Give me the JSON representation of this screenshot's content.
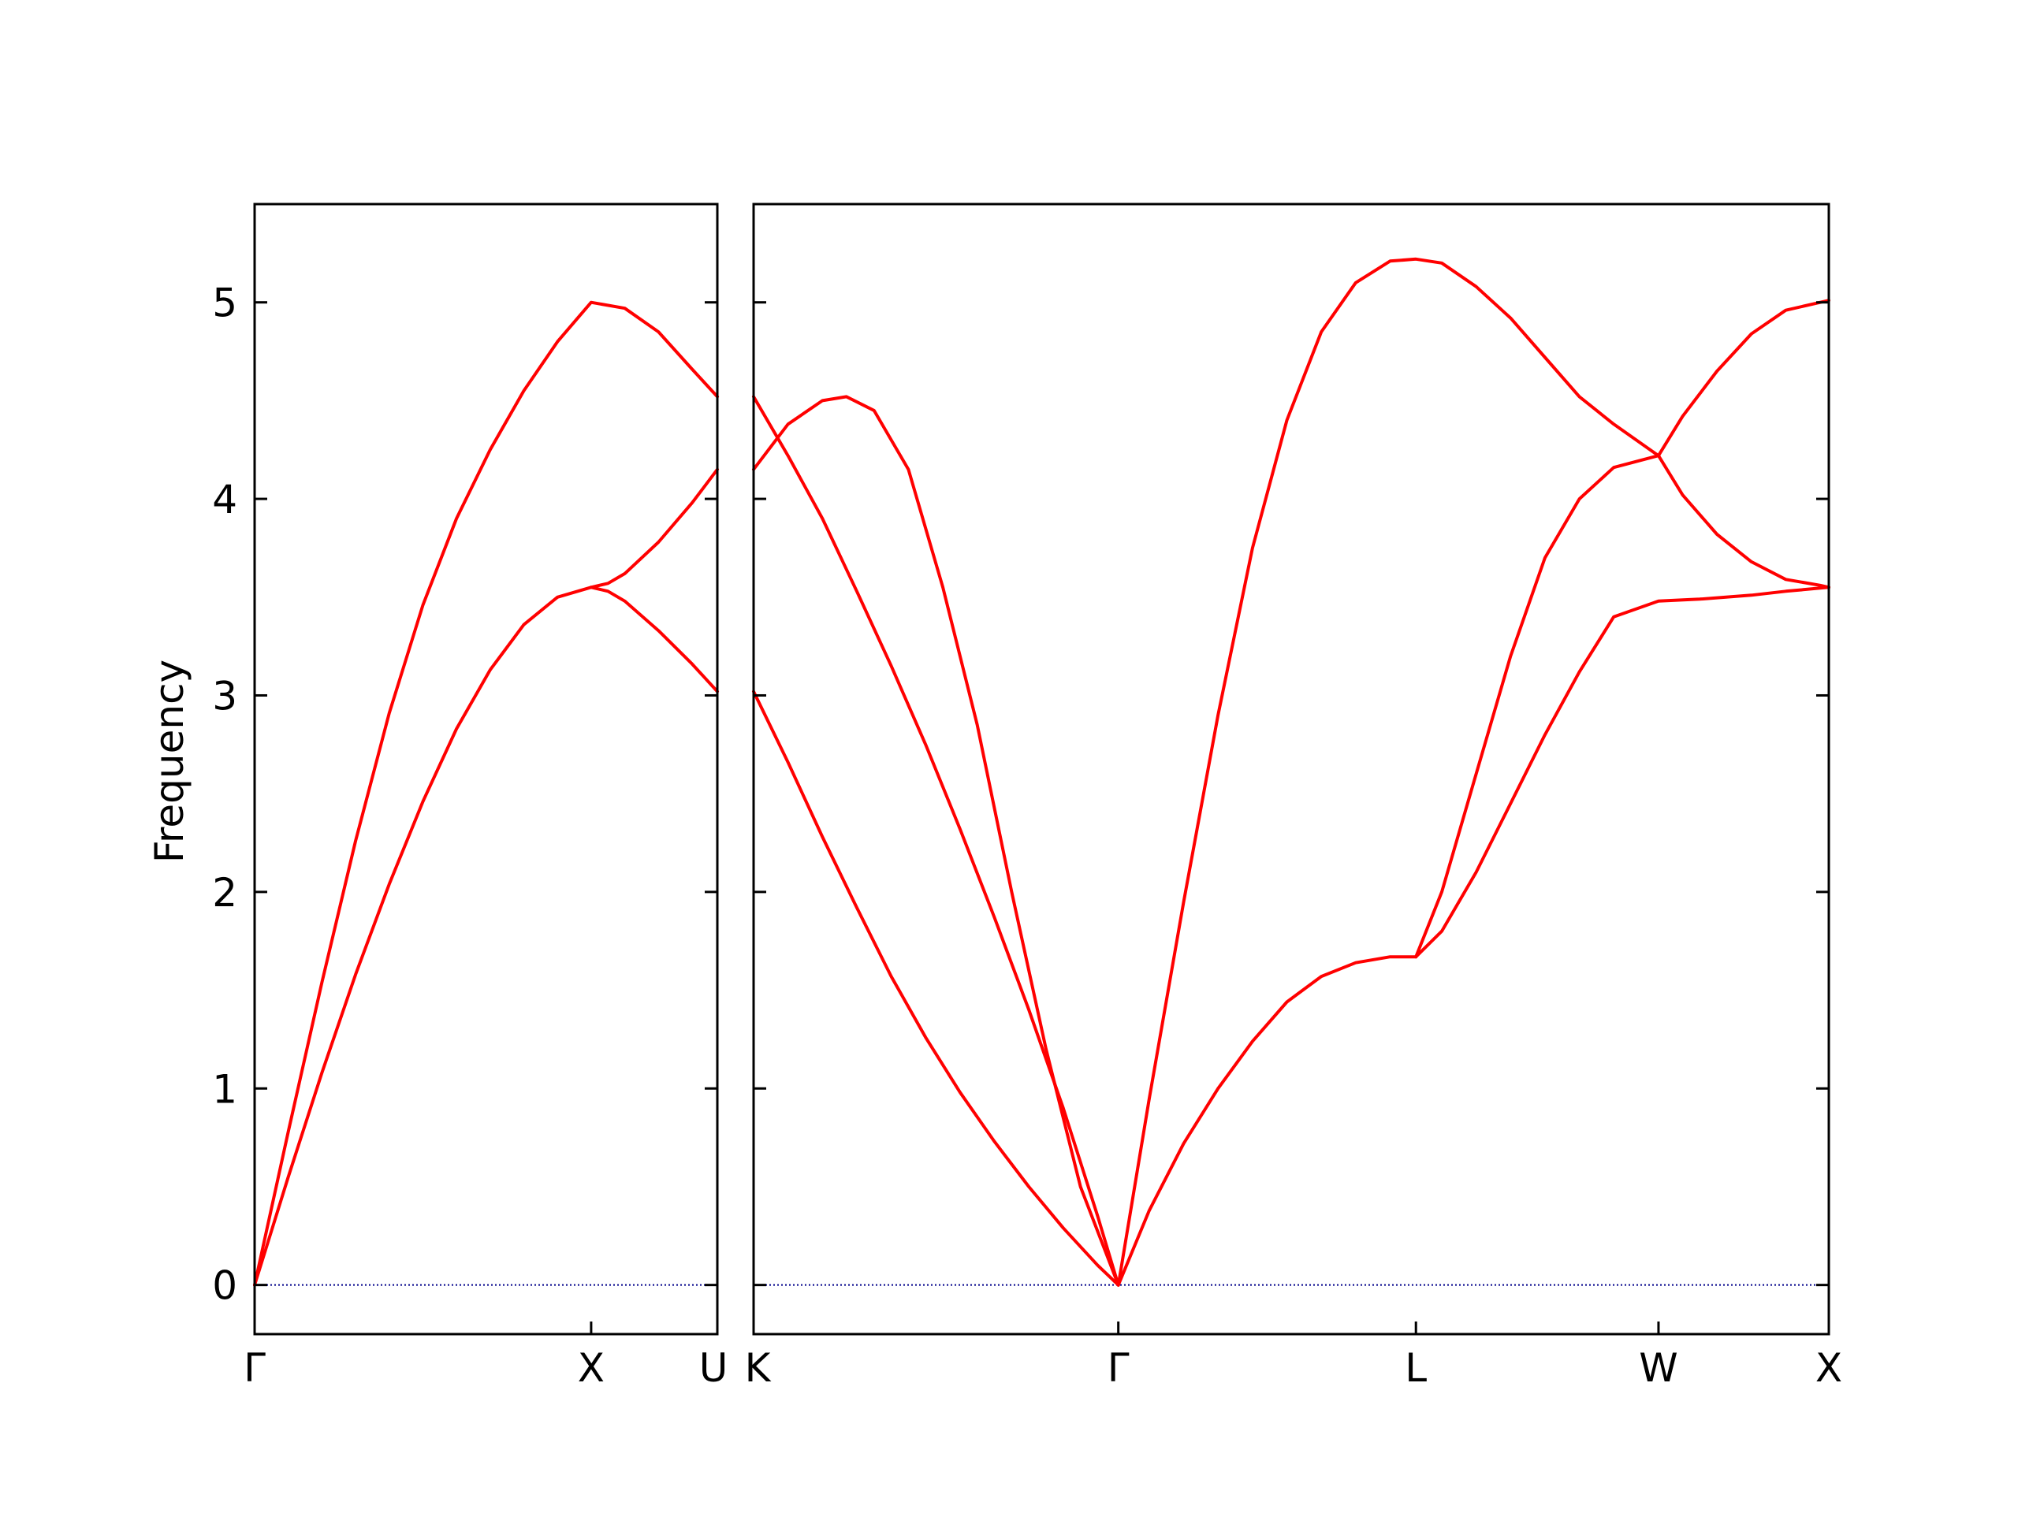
{
  "chart_data": {
    "type": "line",
    "ylabel": "Frequency",
    "ylim": [
      -0.25,
      5.5
    ],
    "yticks": [
      0,
      1,
      2,
      3,
      4,
      5
    ],
    "grid": false,
    "colors": {
      "bands": "#ff0000",
      "zero_line": "#00008b",
      "axis": "#000000"
    },
    "panels": [
      {
        "xlim": [
          0,
          1.375
        ],
        "points": [
          {
            "x": 0,
            "label": "Γ"
          },
          {
            "x": 1.0,
            "label": "X"
          },
          {
            "x": 1.375,
            "label": "U"
          }
        ],
        "series": [
          {
            "x": [
              0,
              0.1,
              0.2,
              0.3,
              0.4,
              0.5,
              0.6,
              0.7,
              0.8,
              0.9,
              1.0,
              1.1,
              1.2,
              1.3,
              1.375
            ],
            "y": [
              0,
              0.78,
              1.54,
              2.26,
              2.91,
              3.46,
              3.9,
              4.25,
              4.55,
              4.8,
              5.0,
              4.97,
              4.85,
              4.66,
              4.52
            ]
          },
          {
            "x": [
              0,
              0.1,
              0.2,
              0.3,
              0.4,
              0.5,
              0.6,
              0.7,
              0.8,
              0.9,
              1.0,
              1.05,
              1.1,
              1.2,
              1.3,
              1.375
            ],
            "y": [
              0,
              0.55,
              1.08,
              1.58,
              2.04,
              2.46,
              2.83,
              3.13,
              3.36,
              3.5,
              3.55,
              3.57,
              3.62,
              3.78,
              3.98,
              4.15
            ]
          },
          {
            "x": [
              1.0,
              1.05,
              1.1,
              1.2,
              1.3,
              1.375
            ],
            "y": [
              3.55,
              3.53,
              3.48,
              3.33,
              3.16,
              3.02
            ]
          }
        ]
      },
      {
        "xlim": [
          0,
          3.125
        ],
        "points": [
          {
            "x": 0,
            "label": "K"
          },
          {
            "x": 1.06,
            "label": "Γ"
          },
          {
            "x": 1.925,
            "label": "L"
          },
          {
            "x": 2.63,
            "label": "W"
          },
          {
            "x": 3.125,
            "label": "X"
          }
        ],
        "series": [
          {
            "x": [
              0,
              0.1,
              0.2,
              0.27,
              0.35,
              0.45,
              0.55,
              0.65,
              0.75,
              0.85,
              0.95,
              1.06
            ],
            "y": [
              4.15,
              4.38,
              4.5,
              4.52,
              4.45,
              4.15,
              3.55,
              2.85,
              2.0,
              1.2,
              0.5,
              0
            ]
          },
          {
            "x": [
              0,
              0.1,
              0.2,
              0.3,
              0.4,
              0.5,
              0.6,
              0.7,
              0.8,
              0.9,
              1.0,
              1.06
            ],
            "y": [
              4.52,
              4.22,
              3.9,
              3.53,
              3.15,
              2.75,
              2.32,
              1.87,
              1.4,
              0.9,
              0.35,
              0
            ]
          },
          {
            "x": [
              0,
              0.1,
              0.2,
              0.3,
              0.4,
              0.5,
              0.6,
              0.7,
              0.8,
              0.9,
              1.0,
              1.06
            ],
            "y": [
              3.02,
              2.66,
              2.28,
              1.92,
              1.57,
              1.26,
              0.98,
              0.73,
              0.5,
              0.29,
              0.1,
              0
            ]
          },
          {
            "x": [
              1.06,
              1.15,
              1.25,
              1.35,
              1.45,
              1.55,
              1.65,
              1.75,
              1.85,
              1.925,
              2.0,
              2.1,
              2.2,
              2.3,
              2.4,
              2.5,
              2.63
            ],
            "y": [
              0,
              0.95,
              1.95,
              2.9,
              3.75,
              4.4,
              4.85,
              5.1,
              5.21,
              5.22,
              5.2,
              5.08,
              4.92,
              4.72,
              4.52,
              4.38,
              4.22
            ]
          },
          {
            "x": [
              2.63,
              2.7,
              2.8,
              2.9,
              3.0,
              3.1,
              3.125
            ],
            "y": [
              4.22,
              4.42,
              4.65,
              4.84,
              4.96,
              5.0,
              5.01
            ]
          },
          {
            "x": [
              2.63,
              2.7,
              2.8,
              2.9,
              3.0,
              3.1,
              3.125
            ],
            "y": [
              4.22,
              4.02,
              3.82,
              3.68,
              3.59,
              3.56,
              3.55
            ]
          },
          {
            "x": [
              1.06,
              1.15,
              1.25,
              1.35,
              1.45,
              1.55,
              1.65,
              1.75,
              1.85,
              1.925
            ],
            "y": [
              0,
              0.38,
              0.72,
              1.0,
              1.24,
              1.44,
              1.57,
              1.64,
              1.67,
              1.67
            ]
          },
          {
            "x": [
              1.925,
              2.0,
              2.1,
              2.2,
              2.3,
              2.4,
              2.5,
              2.63
            ],
            "y": [
              1.67,
              2.0,
              2.6,
              3.2,
              3.7,
              4.0,
              4.16,
              4.22
            ]
          },
          {
            "x": [
              1.925,
              2.0,
              2.1,
              2.2,
              2.3,
              2.4,
              2.5,
              2.63,
              2.75,
              2.9,
              3.0,
              3.125
            ],
            "y": [
              1.67,
              1.8,
              2.1,
              2.45,
              2.8,
              3.12,
              3.4,
              3.48,
              3.49,
              3.51,
              3.53,
              3.55
            ]
          }
        ]
      }
    ]
  }
}
